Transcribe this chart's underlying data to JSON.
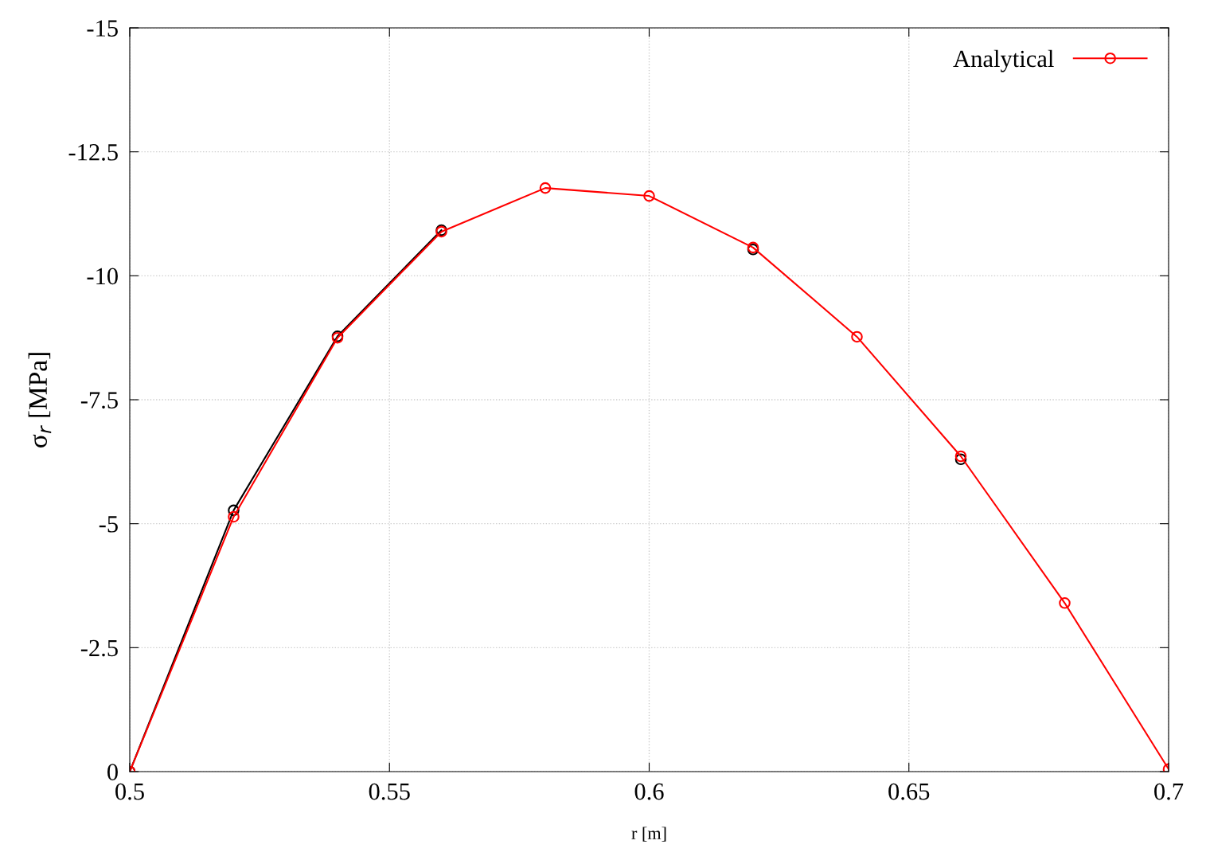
{
  "chart_data": {
    "type": "line",
    "xlabel": "r [m]",
    "ylabel": "σ$_{r}$ [MPa]",
    "xlim": [
      0.5,
      0.7
    ],
    "xticks": [
      0.5,
      0.55,
      0.6,
      0.65,
      0.7
    ],
    "ylim": [
      0,
      -15
    ],
    "yticks": [
      -15,
      -12.5,
      -10,
      -7.5,
      -5,
      -2.5,
      0
    ],
    "grid": true,
    "legend": "top right",
    "marker": "circle",
    "line_style": "solid",
    "series": [
      {
        "color": "#000000",
        "x": [
          0.5,
          0.52,
          0.54,
          0.56,
          0.58,
          0.6,
          0.62,
          0.64,
          0.66
        ],
        "values": [
          0,
          -5.27,
          -8.78,
          -10.92,
          null,
          null,
          -10.53,
          null,
          -6.3
        ]
      },
      {
        "name": "Analytical",
        "color": "#ff0000",
        "x": [
          0.5,
          0.52,
          0.54,
          0.56,
          0.58,
          0.6,
          0.62,
          0.64,
          0.66,
          0.68,
          0.7
        ],
        "values": [
          0,
          -5.14,
          -8.75,
          -10.89,
          -11.77,
          -11.61,
          -10.57,
          -8.77,
          -6.36,
          -3.4,
          -0.05
        ]
      }
    ]
  }
}
